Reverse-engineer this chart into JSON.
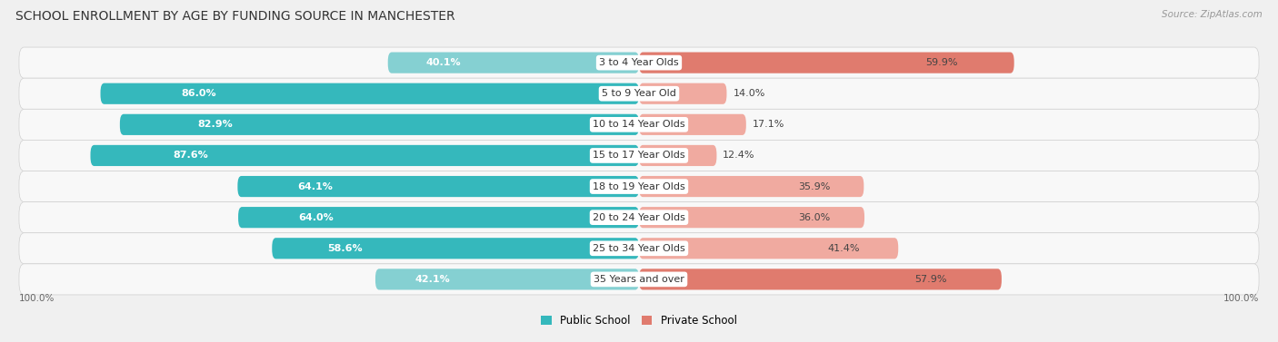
{
  "title": "SCHOOL ENROLLMENT BY AGE BY FUNDING SOURCE IN MANCHESTER",
  "source": "Source: ZipAtlas.com",
  "categories": [
    "3 to 4 Year Olds",
    "5 to 9 Year Old",
    "10 to 14 Year Olds",
    "15 to 17 Year Olds",
    "18 to 19 Year Olds",
    "20 to 24 Year Olds",
    "25 to 34 Year Olds",
    "35 Years and over"
  ],
  "public": [
    40.1,
    86.0,
    82.9,
    87.6,
    64.1,
    64.0,
    58.6,
    42.1
  ],
  "private": [
    59.9,
    14.0,
    17.1,
    12.4,
    35.9,
    36.0,
    41.4,
    57.9
  ],
  "public_color_strong": "#35b8bc",
  "public_color_light": "#85d0d2",
  "private_color_strong": "#e07b6e",
  "private_color_light": "#f0aaA0",
  "bg_color": "#f0f0f0",
  "bar_bg": "#ffffff",
  "row_bg_odd": "#f8f8f8",
  "row_bg_even": "#eeeeee",
  "title_fontsize": 10,
  "label_fontsize": 8,
  "legend_fontsize": 8.5,
  "source_fontsize": 7.5,
  "axis_label_fontsize": 7.5
}
